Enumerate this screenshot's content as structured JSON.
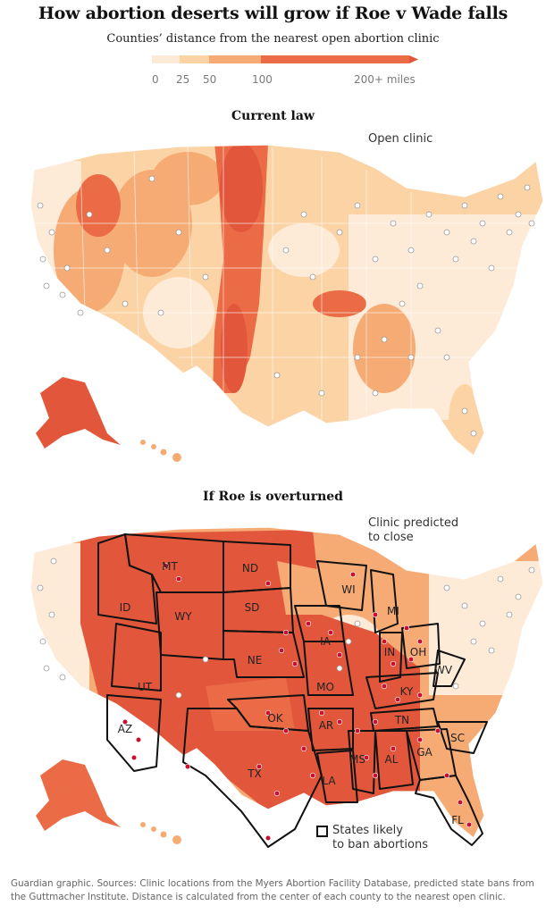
{
  "header": {
    "title": "How abortion deserts will grow if Roe v Wade falls",
    "subtitle": "Counties’ distance from the nearest open abortion clinic"
  },
  "legend": {
    "ticks": [
      "0",
      "25",
      "50",
      "100",
      "200+ miles"
    ],
    "colors": [
      "#fdebd8",
      "#fcd3a4",
      "#f6ab75",
      "#ea6b45",
      "#e2573c"
    ]
  },
  "maps": [
    {
      "title": "Current law",
      "annotation": "Open clinic"
    },
    {
      "title": "If Roe is overturned",
      "annotation_line1": "Clinic predicted",
      "annotation_line2": "to close",
      "key_label_line1": "States likely",
      "key_label_line2": "to ban abortions",
      "state_labels": [
        "MT",
        "ND",
        "WI",
        "MI",
        "ID",
        "WY",
        "SD",
        "IA",
        "IN",
        "OH",
        "NE",
        "UT",
        "MO",
        "KY",
        "WV",
        "OK",
        "AZ",
        "AR",
        "TN",
        "SC",
        "GA",
        "MS",
        "AL",
        "TX",
        "LA",
        "FL"
      ]
    }
  ],
  "colors": {
    "clinic_open": "#ffffff",
    "clinic_closing": "#c8102e",
    "far": "#e2573c",
    "mid": "#f6ab75",
    "near": "#fdebd8"
  },
  "footer": "Guardian graphic. Sources: Clinic locations from the Myers Abortion Facility Database, predicted state bans from the Guttmacher Institute. Distance is calculated from the center of each county to the nearest open clinic."
}
